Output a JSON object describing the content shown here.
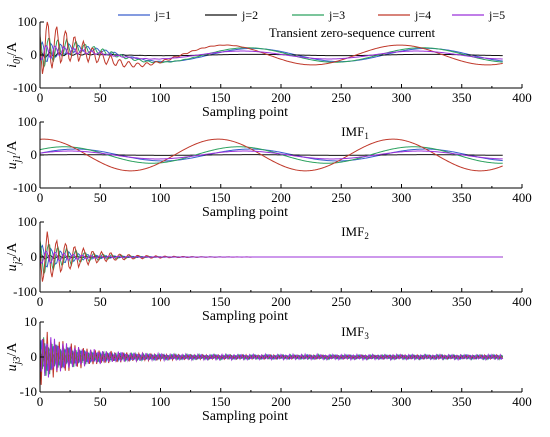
{
  "figure": {
    "legend": {
      "position": "top",
      "entries": [
        {
          "label": "j=1",
          "color": "#3a5fcd"
        },
        {
          "label": "j=2",
          "color": "#111111"
        },
        {
          "label": "j=3",
          "color": "#2ca25f"
        },
        {
          "label": "j=4",
          "color": "#c0392b"
        },
        {
          "label": "j=5",
          "color": "#9b30d9"
        }
      ]
    }
  },
  "chart_data": [
    {
      "type": "line",
      "id": "current",
      "title": "Transient zero-sequence current",
      "xlabel": "Sampling point",
      "ylabel": "i0j/A",
      "ylabel_main": "i",
      "ylabel_sub": "0j",
      "ylabel_unit": "/A",
      "xlim": [
        0,
        400
      ],
      "ylim": [
        -100,
        100
      ],
      "xticks": [
        0,
        50,
        100,
        150,
        200,
        250,
        300,
        350,
        400
      ],
      "yticks": [
        -100,
        0,
        100
      ],
      "grid": false,
      "n_points": 385,
      "series": [
        {
          "label": "j=1",
          "color": "#3a5fcd",
          "low": {
            "amp": 20,
            "period": 145,
            "phase": 0.2
          },
          "osc": {
            "amp0": 40,
            "tau": 25,
            "period": 7.5
          }
        },
        {
          "label": "j=2",
          "color": "#111111",
          "low": {
            "amp": 2,
            "period": 145,
            "phase": 0.2
          },
          "osc": {
            "amp0": 10,
            "tau": 25,
            "period": 7.5
          }
        },
        {
          "label": "j=3",
          "color": "#2ca25f",
          "low": {
            "amp": 22,
            "period": 145,
            "phase": 0.4
          },
          "osc": {
            "amp0": 60,
            "tau": 28,
            "period": 7.5
          }
        },
        {
          "label": "j=4",
          "color": "#c0392b",
          "low": {
            "amp": 30,
            "period": 145,
            "phase": 1.2
          },
          "osc": {
            "amp0": 110,
            "tau": 30,
            "period": 7.5
          }
        },
        {
          "label": "j=5",
          "color": "#9b30d9",
          "low": {
            "amp": 12,
            "period": 145,
            "phase": 0.6
          },
          "osc": {
            "amp0": 30,
            "tau": 25,
            "period": 7.5
          }
        }
      ]
    },
    {
      "type": "line",
      "id": "imf1",
      "title": "IMF1",
      "title_main": "IMF",
      "title_sub": "1",
      "xlabel": "Sampling point",
      "ylabel": "uj1/A",
      "ylabel_main": "u",
      "ylabel_sub": "j1",
      "ylabel_unit": "/A",
      "xlim": [
        0,
        400
      ],
      "ylim": [
        -100,
        100
      ],
      "xticks": [
        0,
        50,
        100,
        150,
        200,
        250,
        300,
        350,
        400
      ],
      "yticks": [
        -100,
        0,
        100
      ],
      "grid": false,
      "n_points": 385,
      "series": [
        {
          "label": "j=1",
          "color": "#3a5fcd",
          "low": {
            "amp": 18,
            "period": 145,
            "phase": 0.3
          }
        },
        {
          "label": "j=2",
          "color": "#111111",
          "low": {
            "amp": 1,
            "period": 145,
            "phase": 0.3
          }
        },
        {
          "label": "j=3",
          "color": "#2ca25f",
          "low": {
            "amp": 25,
            "period": 145,
            "phase": 0.7
          }
        },
        {
          "label": "j=4",
          "color": "#c0392b",
          "low": {
            "amp": 48,
            "period": 145,
            "phase": 1.45
          }
        },
        {
          "label": "j=5",
          "color": "#9b30d9",
          "low": {
            "amp": 12,
            "period": 145,
            "phase": 0.5
          }
        }
      ]
    },
    {
      "type": "line",
      "id": "imf2",
      "title": "IMF2",
      "title_main": "IMF",
      "title_sub": "2",
      "xlabel": "Sampling point",
      "ylabel": "uj2/A",
      "ylabel_main": "u",
      "ylabel_sub": "j2",
      "ylabel_unit": "/A",
      "xlim": [
        0,
        400
      ],
      "ylim": [
        -100,
        100
      ],
      "xticks": [
        0,
        50,
        100,
        150,
        200,
        250,
        300,
        350,
        400
      ],
      "yticks": [
        -100,
        0,
        100
      ],
      "grid": false,
      "n_points": 385,
      "series": [
        {
          "label": "j=1",
          "color": "#3a5fcd",
          "osc": {
            "amp0": 40,
            "tau": 25,
            "period": 7.5
          }
        },
        {
          "label": "j=2",
          "color": "#111111",
          "osc": {
            "amp0": 8,
            "tau": 25,
            "period": 7.5
          }
        },
        {
          "label": "j=3",
          "color": "#2ca25f",
          "osc": {
            "amp0": 60,
            "tau": 28,
            "period": 7.5
          }
        },
        {
          "label": "j=4",
          "color": "#c0392b",
          "osc": {
            "amp0": 90,
            "tau": 30,
            "period": 7.5
          }
        },
        {
          "label": "j=5",
          "color": "#9b30d9",
          "osc": {
            "amp0": 25,
            "tau": 25,
            "period": 7.5
          }
        }
      ]
    },
    {
      "type": "line",
      "id": "imf3",
      "title": "IMF3",
      "title_main": "IMF",
      "title_sub": "3",
      "xlabel": "Sampling point",
      "ylabel": "uj3/A",
      "ylabel_main": "u",
      "ylabel_sub": "j3",
      "ylabel_unit": "/A",
      "xlim": [
        0,
        400
      ],
      "ylim": [
        -10,
        10
      ],
      "xticks": [
        0,
        50,
        100,
        150,
        200,
        250,
        300,
        350,
        400
      ],
      "yticks": [
        -10,
        0,
        10
      ],
      "grid": false,
      "n_points": 385,
      "series": [
        {
          "label": "j=1",
          "color": "#3a5fcd",
          "osc": {
            "amp0": 5,
            "tau": 28,
            "period": 3.3,
            "floor": 0.6
          }
        },
        {
          "label": "j=2",
          "color": "#111111",
          "osc": {
            "amp0": 2,
            "tau": 28,
            "period": 3.3,
            "floor": 0.3
          }
        },
        {
          "label": "j=3",
          "color": "#2ca25f",
          "osc": {
            "amp0": 6,
            "tau": 30,
            "period": 3.3,
            "floor": 0.7
          }
        },
        {
          "label": "j=4",
          "color": "#c0392b",
          "osc": {
            "amp0": 8,
            "tau": 32,
            "period": 3.3,
            "floor": 0.6
          }
        },
        {
          "label": "j=5",
          "color": "#9b30d9",
          "osc": {
            "amp0": 7,
            "tau": 30,
            "period": 3.3,
            "floor": 0.8
          }
        }
      ]
    }
  ]
}
